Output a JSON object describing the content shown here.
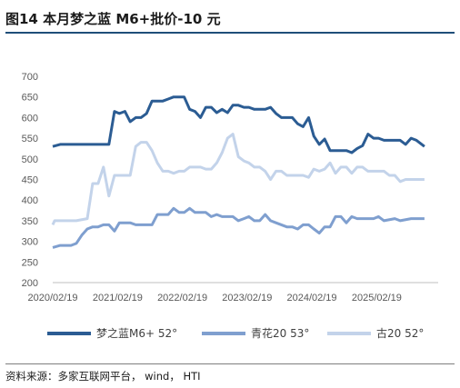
{
  "figure": {
    "title": "图14 本月梦之蓝 M6+批价-10 元",
    "source": "资料来源：多家互联网平台， wind， HTI"
  },
  "chart_data": {
    "type": "line",
    "x_ticks": [
      "2020/02/19",
      "2021/02/19",
      "2022/02/19",
      "2023/02/19",
      "2024/02/19",
      "2025/02/19"
    ],
    "y_ticks": [
      200,
      250,
      300,
      350,
      400,
      450,
      500,
      550,
      600,
      650,
      700
    ],
    "ylim": [
      200,
      700
    ],
    "xlim": [
      "2020/02/19",
      "2025/12/01"
    ],
    "grid": false,
    "legend_position": "bottom",
    "series": [
      {
        "name": "梦之蓝M6+ 52°",
        "color": "#2b5c93",
        "width": 3,
        "points": [
          [
            "2020/02/19",
            530
          ],
          [
            "2020/04/01",
            535
          ],
          [
            "2020/06/01",
            535
          ],
          [
            "2020/09/01",
            535
          ],
          [
            "2020/12/01",
            535
          ],
          [
            "2021/01/01",
            535
          ],
          [
            "2021/02/01",
            615
          ],
          [
            "2021/03/01",
            610
          ],
          [
            "2021/04/01",
            615
          ],
          [
            "2021/05/01",
            590
          ],
          [
            "2021/06/01",
            600
          ],
          [
            "2021/07/01",
            600
          ],
          [
            "2021/08/01",
            610
          ],
          [
            "2021/09/01",
            640
          ],
          [
            "2021/10/01",
            640
          ],
          [
            "2021/11/01",
            640
          ],
          [
            "2021/12/01",
            645
          ],
          [
            "2022/01/01",
            650
          ],
          [
            "2022/03/01",
            650
          ],
          [
            "2022/04/01",
            620
          ],
          [
            "2022/05/01",
            615
          ],
          [
            "2022/06/01",
            600
          ],
          [
            "2022/07/01",
            625
          ],
          [
            "2022/08/01",
            625
          ],
          [
            "2022/09/01",
            612
          ],
          [
            "2022/10/01",
            620
          ],
          [
            "2022/11/01",
            612
          ],
          [
            "2022/12/01",
            630
          ],
          [
            "2023/01/01",
            630
          ],
          [
            "2023/02/01",
            625
          ],
          [
            "2023/03/01",
            625
          ],
          [
            "2023/04/01",
            620
          ],
          [
            "2023/06/01",
            620
          ],
          [
            "2023/07/01",
            625
          ],
          [
            "2023/08/01",
            610
          ],
          [
            "2023/09/01",
            600
          ],
          [
            "2023/11/01",
            600
          ],
          [
            "2023/12/01",
            585
          ],
          [
            "2024/01/01",
            578
          ],
          [
            "2024/02/01",
            600
          ],
          [
            "2024/03/01",
            555
          ],
          [
            "2024/04/01",
            535
          ],
          [
            "2024/05/01",
            548
          ],
          [
            "2024/06/01",
            520
          ],
          [
            "2024/07/01",
            520
          ],
          [
            "2024/09/01",
            520
          ],
          [
            "2024/10/01",
            515
          ],
          [
            "2024/11/01",
            525
          ],
          [
            "2024/12/01",
            532
          ],
          [
            "2025/01/01",
            560
          ],
          [
            "2025/02/01",
            550
          ],
          [
            "2025/03/01",
            550
          ],
          [
            "2025/04/01",
            545
          ],
          [
            "2025/07/01",
            545
          ],
          [
            "2025/08/01",
            535
          ],
          [
            "2025/09/01",
            550
          ],
          [
            "2025/10/01",
            545
          ],
          [
            "2025/11/15",
            530
          ]
        ]
      },
      {
        "name": "青花20 53°",
        "color": "#7f9fcf",
        "width": 3,
        "points": [
          [
            "2020/02/19",
            285
          ],
          [
            "2020/04/01",
            290
          ],
          [
            "2020/06/01",
            290
          ],
          [
            "2020/07/01",
            295
          ],
          [
            "2020/08/01",
            315
          ],
          [
            "2020/09/01",
            330
          ],
          [
            "2020/10/01",
            335
          ],
          [
            "2020/11/01",
            335
          ],
          [
            "2020/12/01",
            340
          ],
          [
            "2021/01/01",
            340
          ],
          [
            "2021/02/01",
            325
          ],
          [
            "2021/03/01",
            345
          ],
          [
            "2021/04/01",
            345
          ],
          [
            "2021/05/01",
            345
          ],
          [
            "2021/06/01",
            340
          ],
          [
            "2021/08/01",
            340
          ],
          [
            "2021/09/01",
            340
          ],
          [
            "2021/10/01",
            365
          ],
          [
            "2021/11/01",
            365
          ],
          [
            "2021/12/01",
            365
          ],
          [
            "2022/01/01",
            380
          ],
          [
            "2022/02/01",
            370
          ],
          [
            "2022/03/01",
            370
          ],
          [
            "2022/04/01",
            380
          ],
          [
            "2022/05/01",
            370
          ],
          [
            "2022/07/01",
            370
          ],
          [
            "2022/08/01",
            360
          ],
          [
            "2022/09/01",
            365
          ],
          [
            "2022/10/01",
            360
          ],
          [
            "2022/12/01",
            360
          ],
          [
            "2023/01/01",
            350
          ],
          [
            "2023/02/01",
            355
          ],
          [
            "2023/03/01",
            360
          ],
          [
            "2023/04/01",
            350
          ],
          [
            "2023/05/01",
            350
          ],
          [
            "2023/06/01",
            365
          ],
          [
            "2023/07/01",
            350
          ],
          [
            "2023/08/01",
            345
          ],
          [
            "2023/10/01",
            335
          ],
          [
            "2023/11/01",
            335
          ],
          [
            "2023/12/01",
            330
          ],
          [
            "2024/01/01",
            340
          ],
          [
            "2024/02/01",
            340
          ],
          [
            "2024/03/01",
            330
          ],
          [
            "2024/04/01",
            320
          ],
          [
            "2024/05/01",
            335
          ],
          [
            "2024/06/01",
            335
          ],
          [
            "2024/07/01",
            360
          ],
          [
            "2024/08/01",
            360
          ],
          [
            "2024/09/01",
            345
          ],
          [
            "2024/10/01",
            360
          ],
          [
            "2024/11/01",
            355
          ],
          [
            "2025/01/01",
            355
          ],
          [
            "2025/02/01",
            355
          ],
          [
            "2025/03/01",
            360
          ],
          [
            "2025/04/01",
            350
          ],
          [
            "2025/06/01",
            355
          ],
          [
            "2025/07/01",
            350
          ],
          [
            "2025/09/01",
            355
          ],
          [
            "2025/11/15",
            355
          ]
        ]
      },
      {
        "name": "古20 52°",
        "color": "#c3d3ea",
        "width": 3,
        "points": [
          [
            "2020/02/19",
            340
          ],
          [
            "2020/03/01",
            350
          ],
          [
            "2020/04/01",
            350
          ],
          [
            "2020/07/01",
            350
          ],
          [
            "2020/09/01",
            355
          ],
          [
            "2020/10/01",
            440
          ],
          [
            "2020/11/01",
            440
          ],
          [
            "2020/12/01",
            480
          ],
          [
            "2021/01/01",
            410
          ],
          [
            "2021/02/01",
            460
          ],
          [
            "2021/03/01",
            460
          ],
          [
            "2021/05/01",
            460
          ],
          [
            "2021/06/01",
            530
          ],
          [
            "2021/07/01",
            540
          ],
          [
            "2021/08/01",
            540
          ],
          [
            "2021/09/01",
            520
          ],
          [
            "2021/10/01",
            490
          ],
          [
            "2021/11/01",
            470
          ],
          [
            "2021/12/01",
            470
          ],
          [
            "2022/01/01",
            465
          ],
          [
            "2022/02/01",
            470
          ],
          [
            "2022/03/01",
            470
          ],
          [
            "2022/04/01",
            480
          ],
          [
            "2022/06/01",
            480
          ],
          [
            "2022/07/01",
            475
          ],
          [
            "2022/08/01",
            475
          ],
          [
            "2022/09/01",
            490
          ],
          [
            "2022/10/01",
            515
          ],
          [
            "2022/11/01",
            550
          ],
          [
            "2022/12/01",
            560
          ],
          [
            "2023/01/01",
            505
          ],
          [
            "2023/02/01",
            495
          ],
          [
            "2023/03/01",
            490
          ],
          [
            "2023/04/01",
            480
          ],
          [
            "2023/05/01",
            480
          ],
          [
            "2023/06/01",
            470
          ],
          [
            "2023/07/01",
            450
          ],
          [
            "2023/08/01",
            470
          ],
          [
            "2023/09/01",
            470
          ],
          [
            "2023/10/01",
            460
          ],
          [
            "2023/12/01",
            460
          ],
          [
            "2024/01/01",
            460
          ],
          [
            "2024/02/01",
            455
          ],
          [
            "2024/03/01",
            475
          ],
          [
            "2024/04/01",
            470
          ],
          [
            "2024/05/01",
            475
          ],
          [
            "2024/06/01",
            490
          ],
          [
            "2024/07/01",
            465
          ],
          [
            "2024/08/01",
            480
          ],
          [
            "2024/09/01",
            480
          ],
          [
            "2024/10/01",
            465
          ],
          [
            "2024/11/01",
            480
          ],
          [
            "2024/12/01",
            480
          ],
          [
            "2025/01/01",
            470
          ],
          [
            "2025/02/01",
            470
          ],
          [
            "2025/03/01",
            470
          ],
          [
            "2025/04/01",
            470
          ],
          [
            "2025/05/01",
            460
          ],
          [
            "2025/06/01",
            460
          ],
          [
            "2025/07/01",
            445
          ],
          [
            "2025/08/01",
            450
          ],
          [
            "2025/11/15",
            450
          ]
        ]
      }
    ]
  }
}
